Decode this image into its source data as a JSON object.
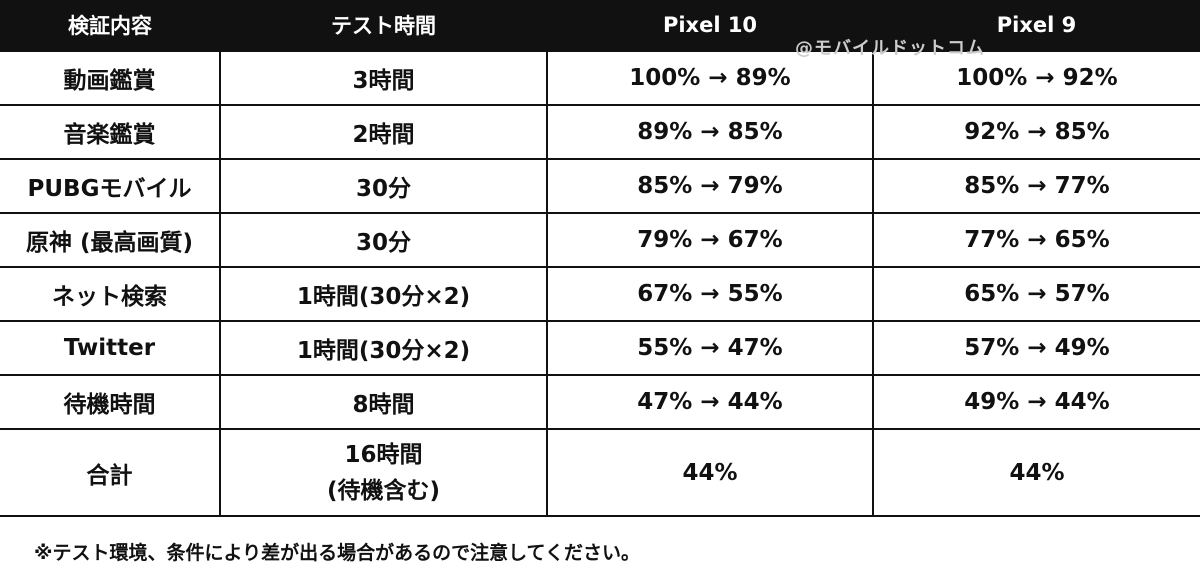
{
  "header": {
    "col1": "検証内容",
    "col2": "テスト時間",
    "col3": "Pixel 10",
    "col4": "Pixel 9"
  },
  "watermark": "@モバイルドットコム",
  "rows": [
    {
      "item": "動画鑑賞",
      "time": "3時間",
      "pixel10": "100% → 89%",
      "pixel9": "100% → 92%"
    },
    {
      "item": "音楽鑑賞",
      "time": "2時間",
      "pixel10": "89% → 85%",
      "pixel9": "92% → 85%"
    },
    {
      "item": "PUBGモバイル",
      "time": "30分",
      "pixel10": "85% → 79%",
      "pixel9": "85% → 77%"
    },
    {
      "item": "原神 (最高画質)",
      "time": "30分",
      "pixel10": "79% → 67%",
      "pixel9": "77% → 65%"
    },
    {
      "item": "ネット検索",
      "time": "1時間(30分×2)",
      "pixel10": "67% → 55%",
      "pixel9": "65% → 57%"
    },
    {
      "item": "Twitter",
      "time": "1時間(30分×2)",
      "pixel10": "55% → 47%",
      "pixel9": "57% → 49%"
    },
    {
      "item": "待機時間",
      "time": "8時間",
      "pixel10": "47% → 44%",
      "pixel9": "49% → 44%"
    }
  ],
  "total": {
    "item": "合計",
    "time_line1": "16時間",
    "time_line2": "(待機含む)",
    "pixel10": "44%",
    "pixel9": "44%"
  },
  "note": "※テスト環境、条件により差が出る場合があるので注意してください。"
}
